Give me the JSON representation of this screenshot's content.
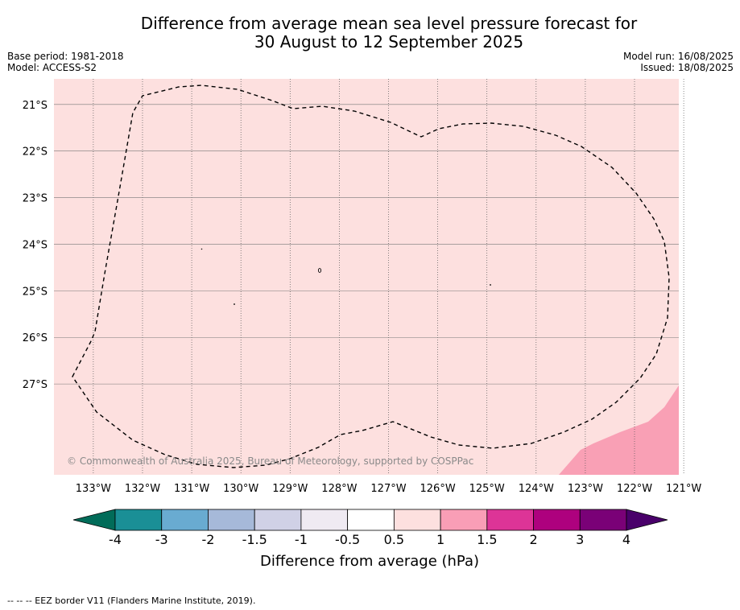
{
  "title_line1": "Difference from average mean sea level pressure forecast for",
  "title_line2": "30 August to 12 September 2025",
  "info_left": {
    "base_period": "Base period: 1981-2018",
    "model": "Model: ACCESS-S2"
  },
  "info_right": {
    "model_run": "Model run: 16/08/2025",
    "issued": "Issued: 18/08/2025"
  },
  "map": {
    "lon_range": [
      -133.8,
      -121.1
    ],
    "lat_range": [
      -28.95,
      -20.45
    ],
    "lon_ticks": [
      -133,
      -132,
      -131,
      -130,
      -129,
      -128,
      -127,
      -126,
      -125,
      -124,
      -123,
      -122,
      -121
    ],
    "lon_labels": [
      "133°W",
      "132°W",
      "131°W",
      "130°W",
      "129°W",
      "128°W",
      "127°W",
      "126°W",
      "125°W",
      "124°W",
      "123°W",
      "122°W",
      "121°W"
    ],
    "lat_ticks": [
      -21,
      -22,
      -23,
      -24,
      -25,
      -26,
      -27
    ],
    "lat_labels": [
      "21°S",
      "22°S",
      "23°S",
      "24°S",
      "25°S",
      "26°S",
      "27°S"
    ],
    "background_color": "#fde0df",
    "anomaly_region_color": "#f9a0b5",
    "copyright": "© Commonwealth of Australia 2025, Bureau of Meteorology, supported by COSPPac"
  },
  "colorbar": {
    "boundaries": [
      "-4",
      "-3",
      "-2",
      "-1.5",
      "-1",
      "-0.5",
      "0.5",
      "1",
      "1.5",
      "2",
      "3",
      "4"
    ],
    "colors": [
      "#1a8f96",
      "#69abd1",
      "#a6b9d9",
      "#d0d1e6",
      "#efeaf2",
      "#ffffff",
      "#fde0df",
      "#f99eb6",
      "#dd3497",
      "#ae017e",
      "#7a0177"
    ],
    "under_color": "#016c59",
    "over_color": "#49006a",
    "label": "Difference from average (hPa)"
  },
  "footer": "--  --  -- EEZ border V11 (Flanders Marine Institute, 2019)."
}
